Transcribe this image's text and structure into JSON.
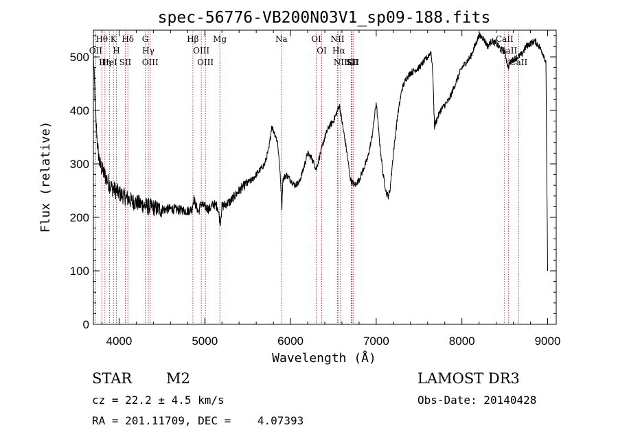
{
  "chart_data": {
    "type": "line",
    "title": "spec-56776-VB200N03V1_sp09-188.fits",
    "xlabel": "Wavelength (Å)",
    "ylabel": "Flux (relative)",
    "xlim": [
      3700,
      9100
    ],
    "ylim": [
      0,
      550
    ],
    "xticks": [
      4000,
      5000,
      6000,
      7000,
      8000,
      9000
    ],
    "yticks": [
      0,
      100,
      200,
      300,
      400,
      500
    ],
    "xtick_labels": [
      "4000",
      "5000",
      "6000",
      "7000",
      "8000",
      "9000"
    ],
    "ytick_labels": [
      "0",
      "100",
      "200",
      "300",
      "400",
      "500"
    ],
    "grid": false,
    "series": [
      {
        "name": "flux",
        "x": [
          3700,
          3715,
          3730,
          3750,
          3775,
          3800,
          3830,
          3860,
          3890,
          3920,
          3960,
          4000,
          4050,
          4100,
          4150,
          4200,
          4250,
          4300,
          4350,
          4400,
          4450,
          4500,
          4550,
          4600,
          4650,
          4700,
          4750,
          4800,
          4850,
          4870,
          4900,
          4930,
          4950,
          5000,
          5050,
          5100,
          5150,
          5180,
          5200,
          5250,
          5300,
          5350,
          5400,
          5450,
          5500,
          5550,
          5600,
          5650,
          5700,
          5750,
          5780,
          5820,
          5850,
          5880,
          5900,
          5910,
          5950,
          6000,
          6050,
          6100,
          6150,
          6200,
          6250,
          6300,
          6350,
          6400,
          6450,
          6500,
          6550,
          6570,
          6600,
          6650,
          6700,
          6750,
          6800,
          6850,
          6900,
          6950,
          7000,
          7040,
          7080,
          7120,
          7140,
          7160,
          7200,
          7250,
          7300,
          7350,
          7400,
          7450,
          7500,
          7550,
          7600,
          7640,
          7660,
          7680,
          7700,
          7750,
          7800,
          7850,
          7900,
          7950,
          8000,
          8050,
          8100,
          8150,
          8200,
          8250,
          8300,
          8350,
          8400,
          8450,
          8500,
          8540,
          8560,
          8600,
          8650,
          8700,
          8750,
          8800,
          8850,
          8900,
          8950,
          8980,
          9000
        ],
        "y": [
          500,
          440,
          380,
          330,
          300,
          290,
          280,
          270,
          260,
          255,
          250,
          245,
          240,
          235,
          230,
          228,
          225,
          222,
          220,
          218,
          216,
          215,
          215,
          216,
          215,
          214,
          213,
          212,
          215,
          235,
          220,
          210,
          225,
          220,
          215,
          225,
          220,
          190,
          220,
          225,
          230,
          240,
          250,
          258,
          265,
          270,
          280,
          290,
          300,
          330,
          370,
          355,
          340,
          280,
          220,
          270,
          280,
          270,
          260,
          265,
          290,
          320,
          310,
          290,
          320,
          350,
          370,
          380,
          400,
          410,
          380,
          330,
          270,
          260,
          270,
          290,
          310,
          350,
          415,
          340,
          280,
          245,
          240,
          250,
          320,
          390,
          440,
          460,
          470,
          475,
          480,
          490,
          500,
          510,
          470,
          370,
          380,
          400,
          410,
          420,
          440,
          460,
          480,
          490,
          500,
          520,
          540,
          535,
          520,
          530,
          525,
          515,
          510,
          480,
          490,
          495,
          500,
          505,
          520,
          525,
          530,
          520,
          505,
          490,
          100
        ]
      }
    ],
    "line_markers": [
      {
        "label": "Hθ",
        "wave": 3798
      },
      {
        "label": "OII",
        "wave": 3727
      },
      {
        "label": "Hη",
        "wave": 3835
      },
      {
        "label": "HeI",
        "wave": 3889
      },
      {
        "label": "K",
        "wave": 3934
      },
      {
        "label": "H",
        "wave": 3968
      },
      {
        "label": "SII",
        "wave": 4072
      },
      {
        "label": "Hδ",
        "wave": 4102
      },
      {
        "label": "G",
        "wave": 4305
      },
      {
        "label": "Hγ",
        "wave": 4341
      },
      {
        "label": "OIII",
        "wave": 4363
      },
      {
        "label": "Hβ",
        "wave": 4861
      },
      {
        "label": "OIII",
        "wave": 4959
      },
      {
        "label": "OIII",
        "wave": 5007
      },
      {
        "label": "Mg",
        "wave": 5175
      },
      {
        "label": "Na",
        "wave": 5894
      },
      {
        "label": "OI",
        "wave": 6300
      },
      {
        "label": "OI",
        "wave": 6364
      },
      {
        "label": "NII",
        "wave": 6548
      },
      {
        "label": "Hα",
        "wave": 6563
      },
      {
        "label": "NII",
        "wave": 6583
      },
      {
        "label": "Li",
        "wave": 6708
      },
      {
        "label": "SII",
        "wave": 6716
      },
      {
        "label": "SII",
        "wave": 6731
      },
      {
        "label": "CaII",
        "wave": 8498
      },
      {
        "label": "CaII",
        "wave": 8542
      },
      {
        "label": "CaII",
        "wave": 8662
      }
    ],
    "line_color": "#000000",
    "marker_color": "#b22222"
  },
  "info": {
    "class_label": "STAR",
    "subclass": "M2",
    "survey": "LAMOST DR3",
    "cz": "cz = 22.2 ± 4.5 km/s",
    "obs_date": "Obs-Date: 20140428",
    "coords": "RA = 201.11709, DEC =    4.07393"
  }
}
